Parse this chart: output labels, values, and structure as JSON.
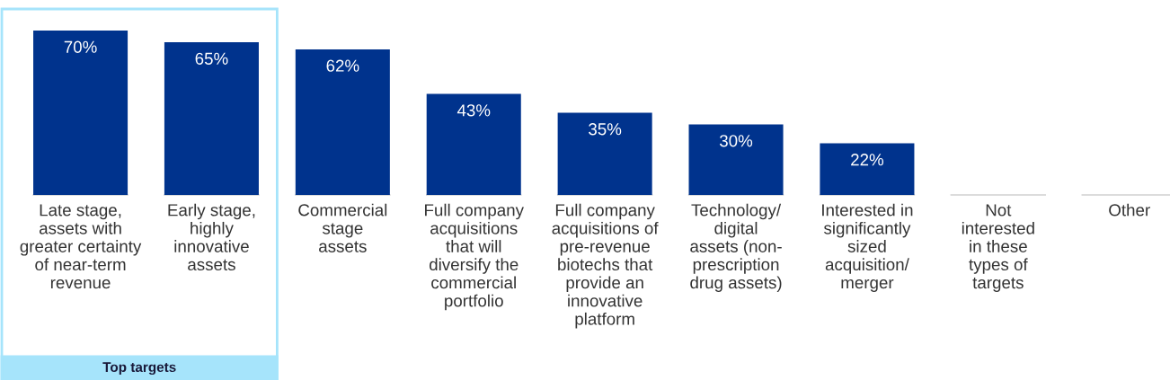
{
  "chart_data": {
    "type": "bar",
    "categories": [
      "Late stage,\nassets with\ngreater certainty\nof near-term\nrevenue",
      "Early stage,\nhighly\ninnovative\nassets",
      "Commercial\nstage\nassets",
      "Full company\nacquisitions\nthat will\ndiversify the\ncommercial\nportfolio",
      "Full company\nacquisitions of\npre-revenue\nbiotechs that\nprovide an\ninnovative\nplatform",
      "Technology/\ndigital\nassets (non-\nprescription\ndrug assets)",
      "Interested in\nsignificantly\nsized\nacquisition/\nmerger",
      "Not\ninterested\nin these\ntypes of\ntargets",
      "Other"
    ],
    "values": [
      70,
      65,
      62,
      43,
      35,
      30,
      22,
      0,
      0
    ],
    "value_labels": [
      "70%",
      "65%",
      "62%",
      "43%",
      "35%",
      "30%",
      "22%",
      null,
      null
    ],
    "color": "#00338d",
    "annotations": [
      "Top targets"
    ]
  }
}
